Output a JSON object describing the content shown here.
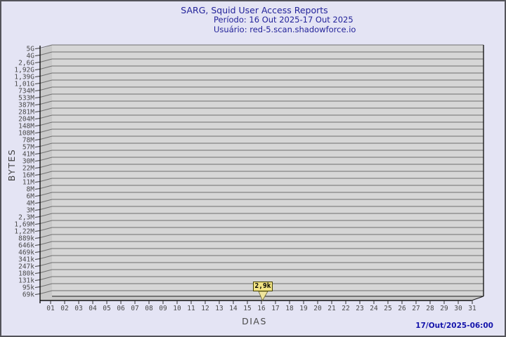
{
  "window": {
    "bg_color": "#e4e4f4",
    "border_color": "#54545a"
  },
  "header": {
    "title": "SARG, Squid User Access Reports",
    "period_line": "Período: 16 Out 2025-17 Out 2025",
    "user_line": "Usuário: red-5.scan.shadowforce.io",
    "text_color": "#23239a"
  },
  "footer": {
    "generated_at": "17/Out/2025-06:00",
    "text_color": "#1414ab"
  },
  "chart_data": {
    "type": "bar",
    "title": "SARG, Squid User Access Reports",
    "xlabel": "DIAS",
    "ylabel": "BYTES",
    "x_tick_labels": [
      "01",
      "02",
      "03",
      "04",
      "05",
      "06",
      "07",
      "08",
      "09",
      "10",
      "11",
      "12",
      "13",
      "14",
      "15",
      "16",
      "17",
      "18",
      "19",
      "20",
      "21",
      "22",
      "23",
      "24",
      "25",
      "26",
      "27",
      "28",
      "29",
      "30",
      "31"
    ],
    "y_tick_labels": [
      "5G",
      "4G",
      "2,6G",
      "1,92G",
      "1,39G",
      "1,01G",
      "734M",
      "533M",
      "387M",
      "281M",
      "204M",
      "148M",
      "108M",
      "78M",
      "57M",
      "41M",
      "30M",
      "22M",
      "16M",
      "11M",
      "8M",
      "6M",
      "4M",
      "3M",
      "2,3M",
      "1,69M",
      "1,22M",
      "889k",
      "646k",
      "469k",
      "341k",
      "247k",
      "180k",
      "131k",
      "95k",
      "69k"
    ],
    "y_axis_top_label": "5G",
    "y_axis_bottom_label": "69k",
    "grid": true,
    "plot_bg": "#d6d6d6",
    "wall_color": "#c9c9c9",
    "grid_color": "#6f6f6f",
    "points": [
      {
        "x": "16",
        "value_label": "2,9k",
        "value_bytes": 2900
      }
    ],
    "marker": {
      "fill": "#f1e383",
      "border": "#454200",
      "pointer_fill": "#efe59c"
    }
  }
}
